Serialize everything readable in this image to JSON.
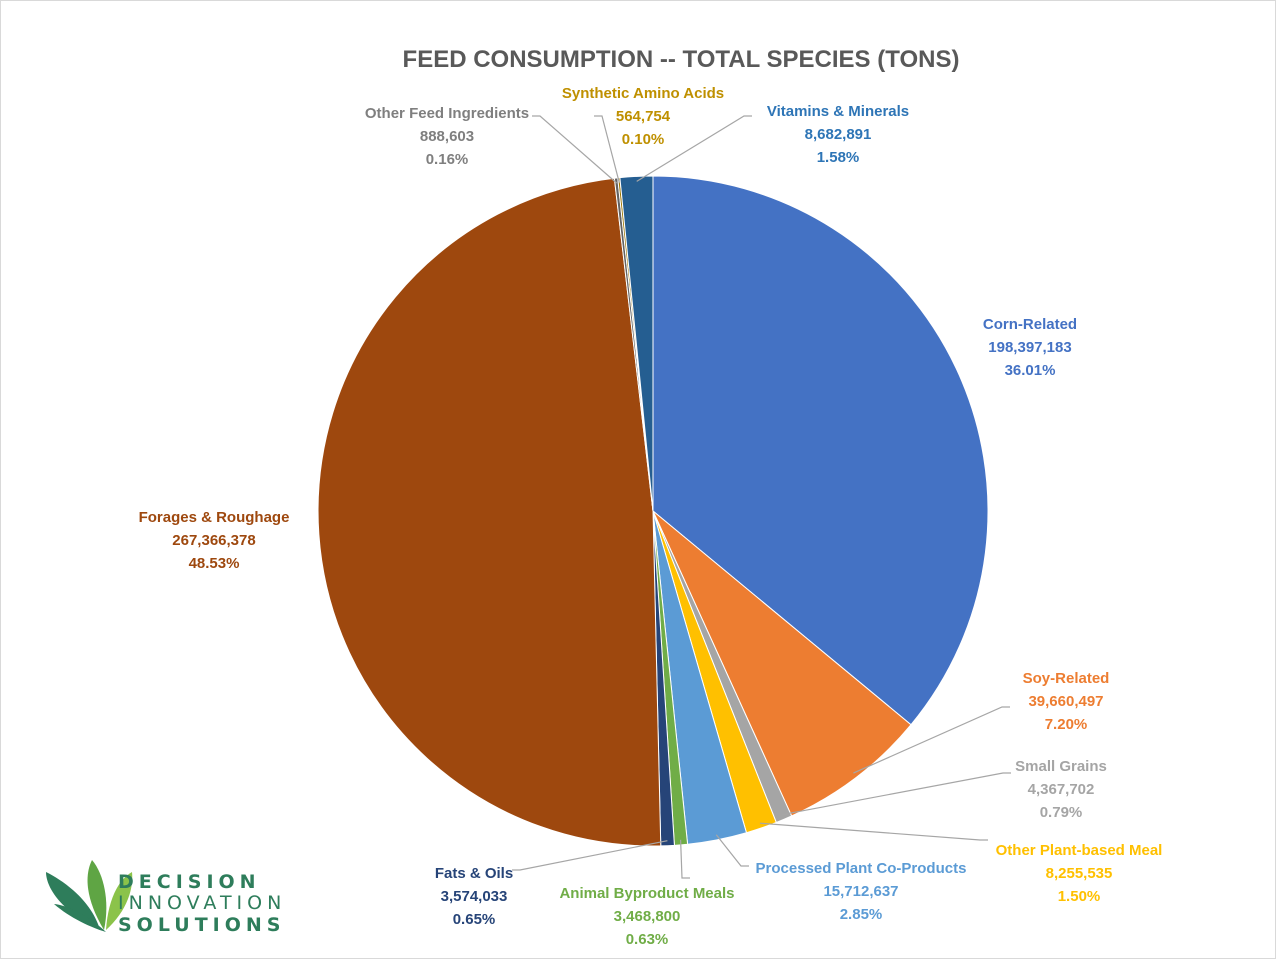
{
  "chart_data": {
    "type": "pie",
    "title": "FEED CONSUMPTION -- TOTAL SPECIES (TONS)",
    "slices": [
      {
        "name": "Corn-Related",
        "value": 198397183,
        "value_label": "198,397,183",
        "percent_label": "36.01%",
        "percent": 36.01,
        "color": "#4472C4",
        "label_color": "#4472C4"
      },
      {
        "name": "Soy-Related",
        "value": 39660497,
        "value_label": "39,660,497",
        "percent_label": "7.20%",
        "percent": 7.2,
        "color": "#ED7D31",
        "label_color": "#ED7D31"
      },
      {
        "name": "Small Grains",
        "value": 4367702,
        "value_label": "4,367,702",
        "percent_label": "0.79%",
        "percent": 0.79,
        "color": "#A5A5A5",
        "label_color": "#A5A5A5"
      },
      {
        "name": "Other Plant-based Meal",
        "value": 8255535,
        "value_label": "8,255,535",
        "percent_label": "1.50%",
        "percent": 1.5,
        "color": "#FFC000",
        "label_color": "#FFC000"
      },
      {
        "name": "Processed Plant Co-Products",
        "value": 15712637,
        "value_label": "15,712,637",
        "percent_label": "2.85%",
        "percent": 2.85,
        "color": "#5B9BD5",
        "label_color": "#5B9BD5"
      },
      {
        "name": "Animal Byproduct Meals",
        "value": 3468800,
        "value_label": "3,468,800",
        "percent_label": "0.63%",
        "percent": 0.63,
        "color": "#70AD47",
        "label_color": "#70AD47"
      },
      {
        "name": "Fats & Oils",
        "value": 3574033,
        "value_label": "3,574,033",
        "percent_label": "0.65%",
        "percent": 0.65,
        "color": "#264478",
        "label_color": "#264478"
      },
      {
        "name": "Forages & Roughage",
        "value": 267366378,
        "value_label": "267,366,378",
        "percent_label": "48.53%",
        "percent": 48.53,
        "color": "#9E480E",
        "label_color": "#9E480E"
      },
      {
        "name": "Other Feed Ingredients",
        "value": 888603,
        "value_label": "888,603",
        "percent_label": "0.16%",
        "percent": 0.16,
        "color": "#636363",
        "label_color": "#7F7F7F"
      },
      {
        "name": "Synthetic Amino Acids",
        "value": 564754,
        "value_label": "564,754",
        "percent_label": "0.10%",
        "percent": 0.1,
        "color": "#997300",
        "label_color": "#BF9000"
      },
      {
        "name": "Vitamins & Minerals",
        "value": 8682891,
        "value_label": "8,682,891",
        "percent_label": "1.58%",
        "percent": 1.58,
        "color": "#255E91",
        "label_color": "#2E75B6"
      }
    ]
  },
  "logo": {
    "line1": "DECISION",
    "line2": "INNOVATION",
    "line3": "SOLUTIONS",
    "color_dark": "#2E7D5B",
    "color_light": "#8BC34A"
  }
}
